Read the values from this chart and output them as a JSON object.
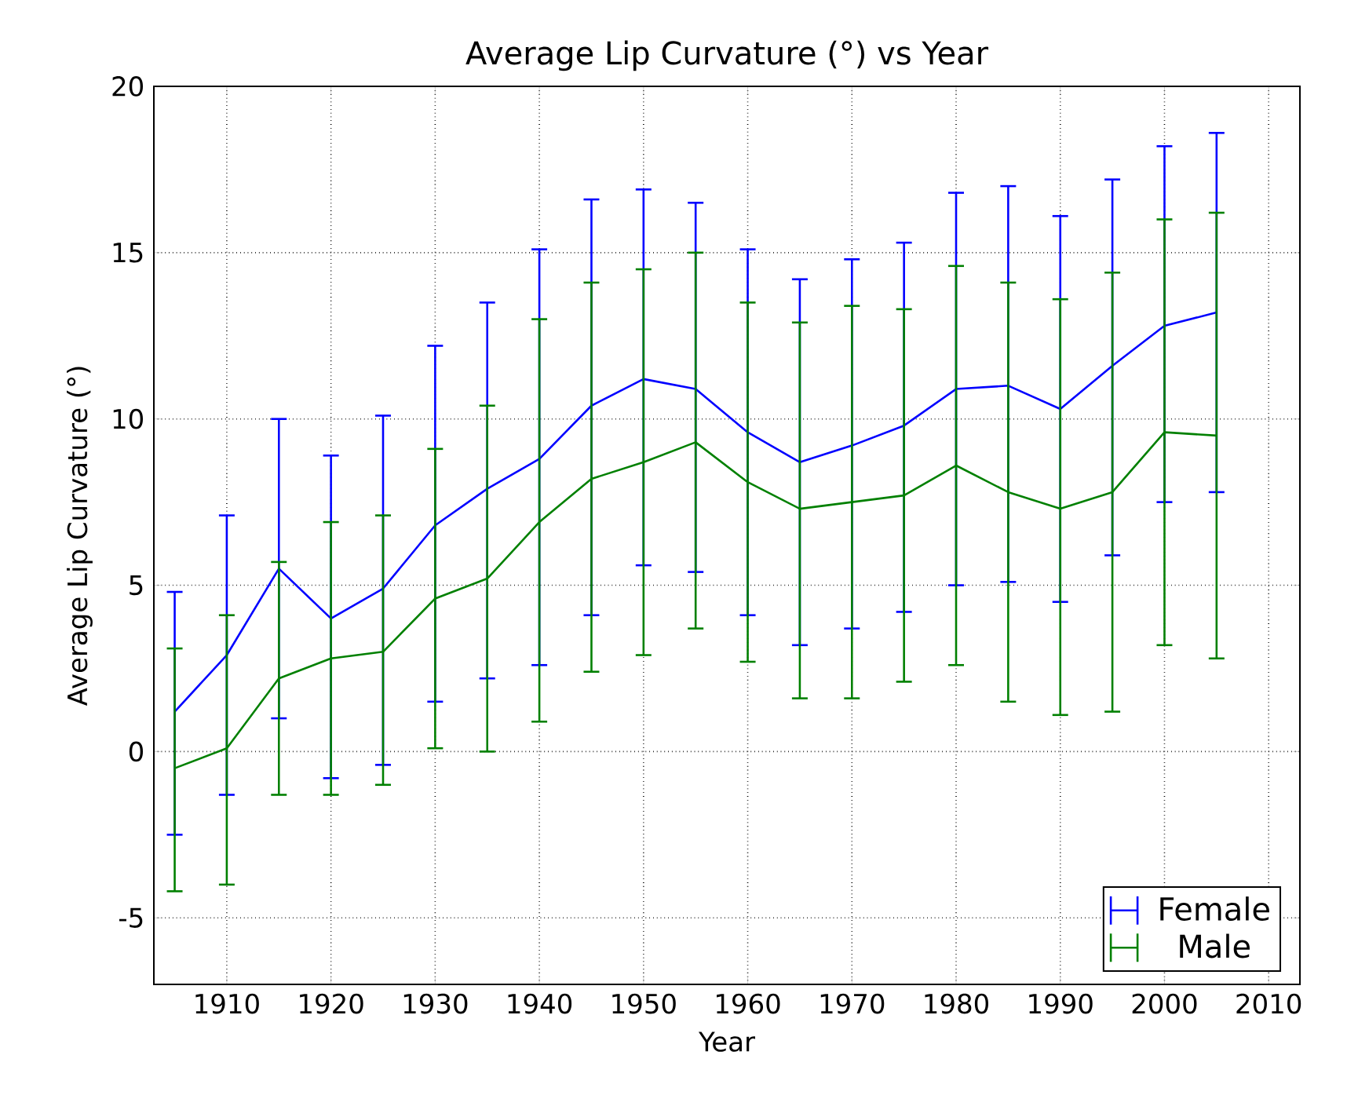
{
  "chart_data": {
    "type": "line",
    "title": "Average Lip Curvature (°) vs Year",
    "xlabel": "Year",
    "ylabel": "Average Lip Curvature (°)",
    "x": [
      1905,
      1910,
      1915,
      1920,
      1925,
      1930,
      1935,
      1940,
      1945,
      1950,
      1955,
      1960,
      1965,
      1970,
      1975,
      1980,
      1985,
      1990,
      1995,
      2000,
      2005
    ],
    "series": [
      {
        "name": "Female",
        "color": "#0000ff",
        "values": [
          1.2,
          2.9,
          5.5,
          4.0,
          4.9,
          6.8,
          7.9,
          8.8,
          10.4,
          11.2,
          10.9,
          9.6,
          8.7,
          9.2,
          9.8,
          10.9,
          11.0,
          10.3,
          11.6,
          12.8,
          13.2
        ],
        "errors": [
          [
            -2.5,
            4.8
          ],
          [
            -1.3,
            7.1
          ],
          [
            1.0,
            10.0
          ],
          [
            -0.8,
            8.9
          ],
          [
            -0.4,
            10.1
          ],
          [
            1.5,
            12.2
          ],
          [
            2.2,
            13.5
          ],
          [
            2.6,
            15.1
          ],
          [
            4.1,
            16.6
          ],
          [
            5.6,
            16.9
          ],
          [
            5.4,
            16.5
          ],
          [
            4.1,
            15.1
          ],
          [
            3.2,
            14.2
          ],
          [
            3.7,
            14.8
          ],
          [
            4.2,
            15.3
          ],
          [
            5.0,
            16.8
          ],
          [
            5.1,
            17.0
          ],
          [
            4.5,
            16.1
          ],
          [
            5.9,
            17.2
          ],
          [
            7.5,
            18.2
          ],
          [
            7.8,
            18.6
          ]
        ]
      },
      {
        "name": "Male",
        "color": "#008000",
        "values": [
          -0.5,
          0.1,
          2.2,
          2.8,
          3.0,
          4.6,
          5.2,
          6.9,
          8.2,
          8.7,
          9.3,
          8.1,
          7.3,
          7.5,
          7.7,
          8.6,
          7.8,
          7.3,
          7.8,
          9.6,
          9.5
        ],
        "errors": [
          [
            -4.2,
            3.1
          ],
          [
            -4.0,
            4.1
          ],
          [
            -1.3,
            5.7
          ],
          [
            -1.3,
            6.9
          ],
          [
            -1.0,
            7.1
          ],
          [
            0.1,
            9.1
          ],
          [
            0.0,
            10.4
          ],
          [
            0.9,
            13.0
          ],
          [
            2.4,
            14.1
          ],
          [
            2.9,
            14.5
          ],
          [
            3.7,
            15.0
          ],
          [
            2.7,
            13.5
          ],
          [
            1.6,
            12.9
          ],
          [
            1.6,
            13.4
          ],
          [
            2.1,
            13.3
          ],
          [
            2.6,
            14.6
          ],
          [
            1.5,
            14.1
          ],
          [
            1.1,
            13.6
          ],
          [
            1.2,
            14.4
          ],
          [
            3.2,
            16.0
          ],
          [
            2.8,
            16.2
          ]
        ]
      }
    ],
    "xlim": [
      1903,
      2013
    ],
    "xticks": [
      1910,
      1920,
      1930,
      1940,
      1950,
      1960,
      1970,
      1980,
      1990,
      2000,
      2010
    ],
    "ylim": [
      -7,
      20
    ],
    "yticks": [
      -5,
      0,
      5,
      10,
      15,
      20
    ],
    "grid": true,
    "legend": "bottom right"
  }
}
